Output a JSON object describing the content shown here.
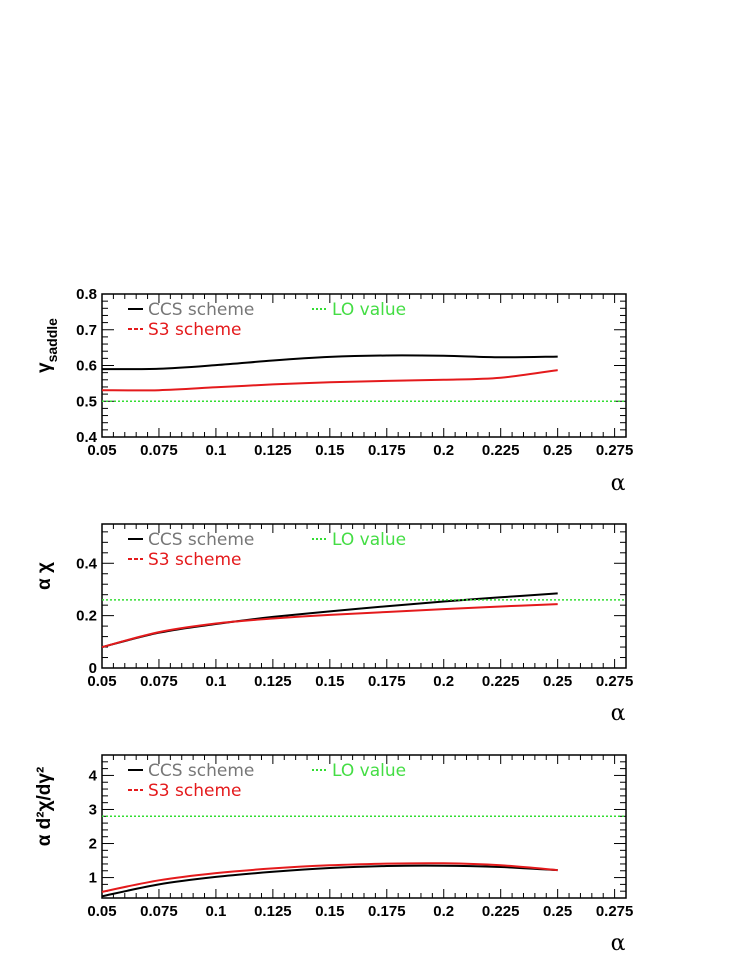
{
  "chart_data": [
    {
      "type": "line",
      "id": "top",
      "ylabel_main": "γ",
      "ylabel_sub": "saddle",
      "xlabel": "α",
      "xlim": [
        0.05,
        0.28
      ],
      "ylim": [
        0.4,
        0.8
      ],
      "xticks": [
        "0.05",
        "0.075",
        "0.1",
        "0.125",
        "0.15",
        "0.175",
        "0.2",
        "0.225",
        "0.25",
        "0.275"
      ],
      "yticks": [
        "0.4",
        "0.5",
        "0.6",
        "0.7",
        "0.8"
      ],
      "ytick_values": [
        0.4,
        0.5,
        0.6,
        0.7,
        0.8
      ],
      "grid": false,
      "legend_placement": "top-left",
      "series": [
        {
          "name": "CCS scheme",
          "color": "#000000",
          "x": [
            0.05,
            0.075,
            0.1,
            0.125,
            0.15,
            0.175,
            0.2,
            0.225,
            0.25
          ],
          "values": [
            0.59,
            0.591,
            0.601,
            0.614,
            0.624,
            0.628,
            0.627,
            0.623,
            0.625
          ]
        },
        {
          "name": "S3 scheme",
          "color": "#e41a1c",
          "x": [
            0.05,
            0.075,
            0.1,
            0.125,
            0.15,
            0.175,
            0.2,
            0.225,
            0.25
          ],
          "values": [
            0.531,
            0.531,
            0.539,
            0.547,
            0.553,
            0.557,
            0.56,
            0.566,
            0.587
          ]
        },
        {
          "name": "LO value",
          "color": "#33dd33",
          "dotted": true,
          "x": [
            0.05,
            0.28
          ],
          "values": [
            0.5,
            0.5
          ]
        }
      ]
    },
    {
      "type": "line",
      "id": "mid",
      "ylabel_main": "α χ",
      "ylabel_sub": "",
      "xlabel": "α",
      "xlim": [
        0.05,
        0.28
      ],
      "ylim": [
        0,
        0.55
      ],
      "xticks": [
        "0.05",
        "0.075",
        "0.1",
        "0.125",
        "0.15",
        "0.175",
        "0.2",
        "0.225",
        "0.25",
        "0.275"
      ],
      "yticks": [
        "0",
        "0.2",
        "0.4"
      ],
      "ytick_values": [
        0,
        0.2,
        0.4
      ],
      "grid": false,
      "legend_placement": "top-left",
      "series": [
        {
          "name": "CCS scheme",
          "color": "#000000",
          "x": [
            0.05,
            0.075,
            0.1,
            0.125,
            0.15,
            0.175,
            0.2,
            0.225,
            0.25
          ],
          "values": [
            0.08,
            0.135,
            0.168,
            0.195,
            0.216,
            0.236,
            0.254,
            0.27,
            0.285
          ]
        },
        {
          "name": "S3 scheme",
          "color": "#e41a1c",
          "x": [
            0.05,
            0.075,
            0.1,
            0.125,
            0.15,
            0.175,
            0.2,
            0.225,
            0.25
          ],
          "values": [
            0.08,
            0.137,
            0.17,
            0.189,
            0.203,
            0.214,
            0.225,
            0.235,
            0.244
          ]
        },
        {
          "name": "LO value",
          "color": "#33dd33",
          "dotted": true,
          "x": [
            0.05,
            0.28
          ],
          "values": [
            0.26,
            0.26
          ]
        }
      ]
    },
    {
      "type": "line",
      "id": "bottom",
      "ylabel_main": "α d²χ/dγ²",
      "ylabel_sub": "",
      "xlabel": "α",
      "xlim": [
        0.05,
        0.28
      ],
      "ylim": [
        0.4,
        4.6
      ],
      "xticks": [
        "0.05",
        "0.075",
        "0.1",
        "0.125",
        "0.15",
        "0.175",
        "0.2",
        "0.225",
        "0.25",
        "0.275"
      ],
      "yticks": [
        "1",
        "2",
        "3",
        "4"
      ],
      "ytick_values": [
        1,
        2,
        3,
        4
      ],
      "grid": false,
      "legend_placement": "top-left",
      "series": [
        {
          "name": "CCS scheme",
          "color": "#000000",
          "x": [
            0.05,
            0.075,
            0.1,
            0.125,
            0.15,
            0.175,
            0.2,
            0.225,
            0.25
          ],
          "values": [
            0.45,
            0.8,
            1.02,
            1.17,
            1.28,
            1.34,
            1.35,
            1.31,
            1.22
          ]
        },
        {
          "name": "S3 scheme",
          "color": "#e41a1c",
          "x": [
            0.05,
            0.075,
            0.1,
            0.125,
            0.15,
            0.175,
            0.2,
            0.225,
            0.25
          ],
          "values": [
            0.58,
            0.92,
            1.13,
            1.27,
            1.36,
            1.41,
            1.42,
            1.36,
            1.22
          ]
        },
        {
          "name": "LO value",
          "color": "#33dd33",
          "dotted": true,
          "x": [
            0.05,
            0.28
          ],
          "values": [
            2.8,
            2.8
          ]
        }
      ]
    }
  ]
}
